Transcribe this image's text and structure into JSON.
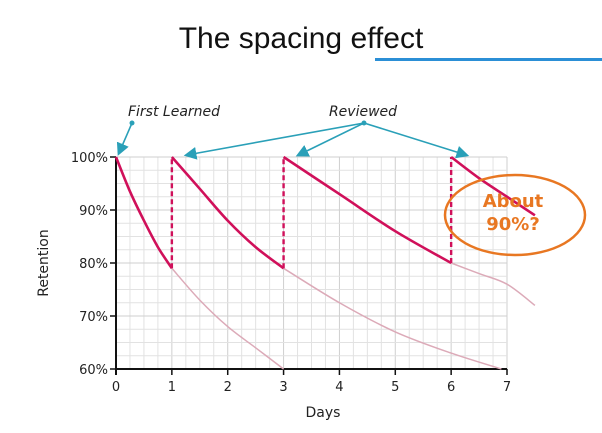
{
  "slide": {
    "title": "The spacing effect",
    "underline_color": "#2b8fd6"
  },
  "chart_data": {
    "type": "line",
    "title": "",
    "xlabel": "Days",
    "ylabel": "Retention",
    "xlim": [
      0,
      7
    ],
    "ylim": [
      60,
      100
    ],
    "xticks": [
      "0",
      "1",
      "2",
      "3",
      "4",
      "5",
      "6",
      "7"
    ],
    "yticks": [
      "60%",
      "70%",
      "80%",
      "90%",
      "100%"
    ],
    "grid": true,
    "annotations": [
      {
        "text": "First Learned",
        "points_to_day": [
          0
        ]
      },
      {
        "text": "Reviewed",
        "points_to_day": [
          1,
          3,
          6
        ]
      },
      {
        "text": "About",
        "text2": "90%?",
        "color": "#e87722"
      }
    ],
    "colors": {
      "retained": "#d0105a",
      "forgotten": "#dcaab8",
      "arrow": "#2aa0b8"
    },
    "series": [
      {
        "style": "solid",
        "x": [
          0,
          0.25,
          0.5,
          0.75,
          1
        ],
        "y": [
          100,
          93.5,
          88,
          83,
          79
        ]
      },
      {
        "style": "faded",
        "x": [
          1,
          1.5,
          2,
          2.5,
          3
        ],
        "y": [
          79,
          73,
          68,
          64,
          60
        ]
      },
      {
        "style": "solid",
        "x": [
          1,
          1.5,
          2,
          2.5,
          3
        ],
        "y": [
          100,
          94,
          88,
          83,
          79
        ]
      },
      {
        "style": "faded",
        "x": [
          3,
          4,
          5,
          6,
          6.9
        ],
        "y": [
          79,
          72.5,
          67,
          63,
          60
        ]
      },
      {
        "style": "solid",
        "x": [
          3,
          4,
          5,
          6
        ],
        "y": [
          100,
          93,
          86,
          80
        ]
      },
      {
        "style": "faded",
        "x": [
          6,
          6.5,
          7,
          7.5
        ],
        "y": [
          80,
          78,
          76,
          72
        ]
      },
      {
        "style": "solid",
        "x": [
          6,
          6.5,
          7,
          7.5
        ],
        "y": [
          100,
          96,
          92.5,
          89
        ]
      }
    ],
    "review_jumps": [
      {
        "x": 1,
        "from": 79,
        "to": 100
      },
      {
        "x": 3,
        "from": 79,
        "to": 100
      },
      {
        "x": 6,
        "from": 80,
        "to": 100
      }
    ]
  }
}
